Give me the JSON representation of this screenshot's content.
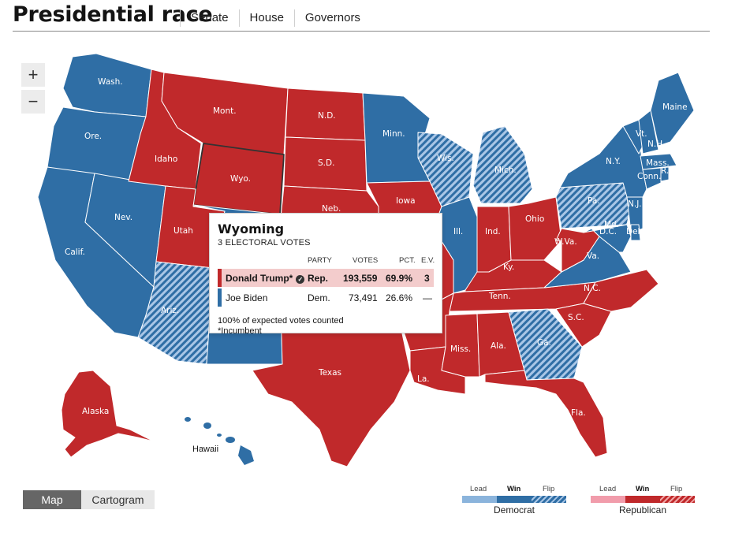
{
  "header": {
    "title": "Presidential race",
    "tabs": [
      "Senate",
      "House",
      "Governors"
    ]
  },
  "zoom": {
    "in": "+",
    "out": "−"
  },
  "colors": {
    "dem_win": "#2f6ea5",
    "dem_lead": "#8bb4dc",
    "rep_win": "#c0292b",
    "rep_lead": "#f19cab",
    "border": "#ffffff"
  },
  "map": {
    "states": {
      "wash": "Wash.",
      "ore": "Ore.",
      "calif": "Calif.",
      "nev": "Nev.",
      "idaho": "Idaho",
      "mont": "Mont.",
      "wyo": "Wyo.",
      "utah": "Utah",
      "ariz": "Ariz.",
      "nd": "N.D.",
      "sd": "S.D.",
      "neb": "Neb.",
      "minn": "Minn.",
      "iowa": "Iowa",
      "wis": "Wis.",
      "mich": "Mich.",
      "ill": "Ill.",
      "ind": "Ind.",
      "ohio": "Ohio",
      "ky": "Ky.",
      "tenn": "Tenn.",
      "miss": "Miss.",
      "ala": "Ala.",
      "ga": "Ga.",
      "la": "La.",
      "texas": "Texas",
      "fla": "Fla.",
      "sc": "S.C.",
      "nc": "N.C.",
      "va": "Va.",
      "wva": "W.Va.",
      "pa": "Pa.",
      "ny": "N.Y.",
      "nj": "N.J.",
      "md": "Md.",
      "dc": "D.C.",
      "del": "Del.",
      "conn": "Conn.",
      "ri": "R.I.",
      "mass": "Mass.",
      "vt": "Vt.",
      "nh": "N.H.",
      "maine": "Maine",
      "alaska": "Alaska",
      "hawaii": "Hawaii"
    }
  },
  "tooltip": {
    "state": "Wyoming",
    "electoral": "3 ELECTORAL VOTES",
    "headers": {
      "party": "PARTY",
      "votes": "VOTES",
      "pct": "PCT.",
      "ev": "E.V."
    },
    "rows": [
      {
        "name": "Donald Trump*",
        "party": "Rep.",
        "votes": "193,559",
        "pct": "69.9%",
        "ev": "3",
        "winner": true
      },
      {
        "name": "Joe Biden",
        "party": "Dem.",
        "votes": "73,491",
        "pct": "26.6%",
        "ev": "—",
        "winner": false
      }
    ],
    "note1": "100% of expected votes counted",
    "note2": "*Incumbent"
  },
  "view_toggle": {
    "map": "Map",
    "cartogram": "Cartogram"
  },
  "legend": {
    "lead": "Lead",
    "win": "Win",
    "flip": "Flip",
    "democrat": "Democrat",
    "republican": "Republican"
  }
}
